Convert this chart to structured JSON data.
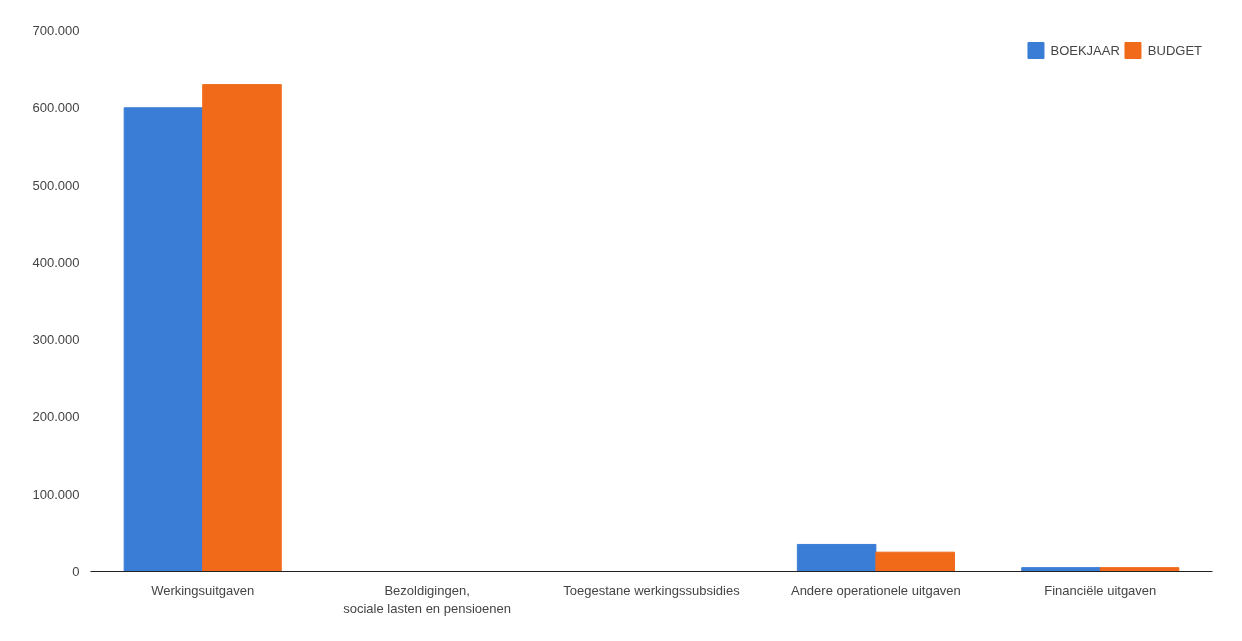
{
  "chart_data": {
    "type": "bar",
    "categories": [
      "Werkingsuitgaven",
      "Bezoldigingen, sociale lasten en pensioenen",
      "Toegestane werkingssubsidies",
      "Andere operationele uitgaven",
      "Financiële uitgaven"
    ],
    "series": [
      {
        "name": "BOEKJAAR",
        "color": "#3a7dd6",
        "values": [
          600000,
          0,
          0,
          35000,
          5000
        ]
      },
      {
        "name": "BUDGET",
        "color": "#f06a1a",
        "values": [
          630000,
          0,
          0,
          25000,
          5000
        ]
      }
    ],
    "ylim": [
      0,
      700000
    ],
    "yticks": [
      {
        "value": 0,
        "label": "0"
      },
      {
        "value": 100000,
        "label": "100.000"
      },
      {
        "value": 200000,
        "label": "200.000"
      },
      {
        "value": 300000,
        "label": "300.000"
      },
      {
        "value": 400000,
        "label": "400.000"
      },
      {
        "value": 500000,
        "label": "500.000"
      },
      {
        "value": 600000,
        "label": "600.000"
      },
      {
        "value": 700000,
        "label": "700.000"
      }
    ],
    "grid": false,
    "legend": "top right"
  }
}
